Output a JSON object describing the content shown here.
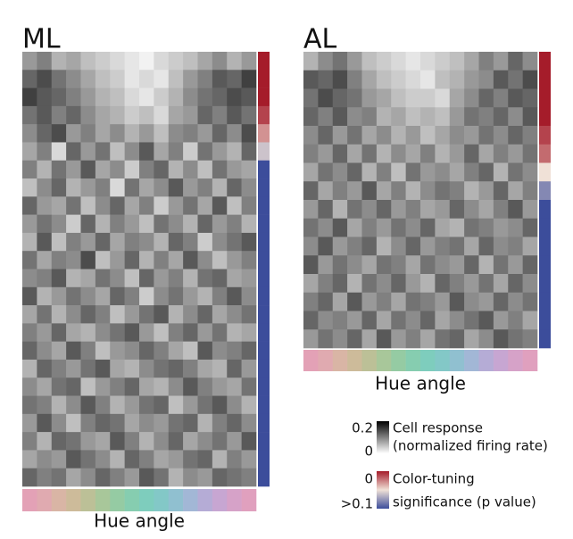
{
  "chart_data": [
    {
      "type": "heatmap",
      "title": "ML",
      "xlabel": "Hue angle",
      "hue_colors": [
        "#e3a1b6",
        "#e0aab0",
        "#d9b5a5",
        "#cdbb9a",
        "#bcc097",
        "#a8c79a",
        "#95cba3",
        "#86cdb0",
        "#7ecdbd",
        "#83c8c7",
        "#90c0d0",
        "#a2b7d6",
        "#b5acd6",
        "#c7a6d2",
        "#d6a2c8",
        "#e0a0be"
      ],
      "values": [
        [
          0.08,
          0.1,
          0.06,
          0.07,
          0.05,
          0.04,
          0.03,
          0.02,
          0.01,
          0.03,
          0.04,
          0.05,
          0.07,
          0.09,
          0.06,
          0.08
        ],
        [
          0.12,
          0.14,
          0.11,
          0.09,
          0.07,
          0.05,
          0.04,
          0.02,
          0.03,
          0.02,
          0.05,
          0.08,
          0.1,
          0.13,
          0.12,
          0.15
        ],
        [
          0.15,
          0.13,
          0.12,
          0.1,
          0.08,
          0.06,
          0.05,
          0.03,
          0.02,
          0.04,
          0.06,
          0.09,
          0.11,
          0.12,
          0.14,
          0.13
        ],
        [
          0.11,
          0.13,
          0.1,
          0.12,
          0.09,
          0.07,
          0.06,
          0.04,
          0.05,
          0.03,
          0.07,
          0.08,
          0.12,
          0.1,
          0.13,
          0.11
        ],
        [
          0.09,
          0.12,
          0.14,
          0.08,
          0.1,
          0.07,
          0.09,
          0.06,
          0.08,
          0.05,
          0.09,
          0.1,
          0.08,
          0.12,
          0.09,
          0.14
        ],
        [
          0.07,
          0.1,
          0.03,
          0.12,
          0.08,
          0.11,
          0.05,
          0.09,
          0.13,
          0.07,
          0.1,
          0.04,
          0.11,
          0.08,
          0.06,
          0.12
        ],
        [
          0.1,
          0.06,
          0.11,
          0.08,
          0.13,
          0.07,
          0.09,
          0.04,
          0.1,
          0.12,
          0.06,
          0.09,
          0.05,
          0.11,
          0.08,
          0.07
        ],
        [
          0.05,
          0.09,
          0.12,
          0.06,
          0.08,
          0.1,
          0.03,
          0.11,
          0.07,
          0.09,
          0.13,
          0.08,
          0.1,
          0.06,
          0.12,
          0.09
        ],
        [
          0.12,
          0.08,
          0.07,
          0.11,
          0.05,
          0.09,
          0.12,
          0.07,
          0.1,
          0.04,
          0.08,
          0.11,
          0.07,
          0.13,
          0.05,
          0.1
        ],
        [
          0.08,
          0.11,
          0.09,
          0.04,
          0.12,
          0.06,
          0.1,
          0.08,
          0.05,
          0.11,
          0.09,
          0.06,
          0.12,
          0.08,
          0.1,
          0.06
        ],
        [
          0.06,
          0.13,
          0.05,
          0.1,
          0.08,
          0.12,
          0.07,
          0.1,
          0.09,
          0.06,
          0.12,
          0.1,
          0.04,
          0.09,
          0.11,
          0.13
        ],
        [
          0.11,
          0.07,
          0.1,
          0.09,
          0.14,
          0.05,
          0.08,
          0.12,
          0.06,
          0.1,
          0.07,
          0.13,
          0.09,
          0.05,
          0.08,
          0.1
        ],
        [
          0.09,
          0.1,
          0.13,
          0.06,
          0.07,
          0.11,
          0.09,
          0.05,
          0.12,
          0.08,
          0.1,
          0.06,
          0.11,
          0.12,
          0.07,
          0.08
        ],
        [
          0.13,
          0.06,
          0.08,
          0.11,
          0.09,
          0.07,
          0.12,
          0.1,
          0.04,
          0.09,
          0.11,
          0.08,
          0.06,
          0.1,
          0.13,
          0.09
        ],
        [
          0.07,
          0.11,
          0.06,
          0.09,
          0.12,
          0.1,
          0.05,
          0.08,
          0.11,
          0.13,
          0.06,
          0.09,
          0.12,
          0.07,
          0.09,
          0.11
        ],
        [
          0.1,
          0.08,
          0.12,
          0.07,
          0.06,
          0.09,
          0.11,
          0.13,
          0.08,
          0.05,
          0.1,
          0.12,
          0.08,
          0.11,
          0.06,
          0.07
        ],
        [
          0.12,
          0.09,
          0.07,
          0.13,
          0.1,
          0.05,
          0.08,
          0.09,
          0.12,
          0.1,
          0.07,
          0.05,
          0.13,
          0.09,
          0.1,
          0.12
        ],
        [
          0.06,
          0.12,
          0.1,
          0.08,
          0.11,
          0.13,
          0.07,
          0.06,
          0.09,
          0.11,
          0.12,
          0.1,
          0.07,
          0.06,
          0.12,
          0.08
        ],
        [
          0.09,
          0.07,
          0.11,
          0.12,
          0.05,
          0.08,
          0.1,
          0.12,
          0.07,
          0.06,
          0.09,
          0.13,
          0.1,
          0.08,
          0.07,
          0.11
        ],
        [
          0.11,
          0.1,
          0.06,
          0.09,
          0.13,
          0.1,
          0.06,
          0.08,
          0.11,
          0.12,
          0.05,
          0.08,
          0.11,
          0.13,
          0.09,
          0.06
        ],
        [
          0.08,
          0.13,
          0.09,
          0.05,
          0.1,
          0.12,
          0.11,
          0.07,
          0.09,
          0.08,
          0.11,
          0.12,
          0.06,
          0.1,
          0.12,
          0.09
        ],
        [
          0.1,
          0.06,
          0.12,
          0.11,
          0.08,
          0.07,
          0.13,
          0.1,
          0.06,
          0.09,
          0.12,
          0.07,
          0.09,
          0.11,
          0.08,
          0.13
        ],
        [
          0.07,
          0.09,
          0.08,
          0.13,
          0.11,
          0.09,
          0.06,
          0.12,
          0.1,
          0.07,
          0.08,
          0.11,
          0.12,
          0.06,
          0.1,
          0.08
        ],
        [
          0.12,
          0.1,
          0.11,
          0.07,
          0.09,
          0.12,
          0.1,
          0.08,
          0.13,
          0.11,
          0.06,
          0.09,
          0.08,
          0.12,
          0.11,
          0.1
        ]
      ],
      "significance": [
        0,
        0,
        0,
        0.01,
        0.03,
        0.06,
        0.1,
        0.1,
        0.1,
        0.1,
        0.1,
        0.1,
        0.1,
        0.1,
        0.1,
        0.1,
        0.1,
        0.1,
        0.1,
        0.1,
        0.1,
        0.1,
        0.1,
        0.1
      ]
    },
    {
      "type": "heatmap",
      "title": "AL",
      "xlabel": "Hue angle",
      "hue_colors": [
        "#e3a1b6",
        "#e0aab0",
        "#d9b5a5",
        "#cdbb9a",
        "#bcc097",
        "#a8c79a",
        "#95cba3",
        "#86cdb0",
        "#7ecdbd",
        "#83c8c7",
        "#90c0d0",
        "#a2b7d6",
        "#b5acd6",
        "#c7a6d2",
        "#d6a2c8",
        "#e0a0be"
      ],
      "values": [
        [
          0.06,
          0.09,
          0.11,
          0.08,
          0.05,
          0.04,
          0.03,
          0.02,
          0.03,
          0.04,
          0.05,
          0.07,
          0.1,
          0.08,
          0.12,
          0.09
        ],
        [
          0.13,
          0.12,
          0.14,
          0.1,
          0.07,
          0.05,
          0.04,
          0.03,
          0.02,
          0.05,
          0.06,
          0.08,
          0.09,
          0.13,
          0.11,
          0.14
        ],
        [
          0.11,
          0.14,
          0.12,
          0.11,
          0.08,
          0.07,
          0.05,
          0.04,
          0.04,
          0.03,
          0.07,
          0.09,
          0.12,
          0.1,
          0.13,
          0.12
        ],
        [
          0.12,
          0.1,
          0.13,
          0.09,
          0.1,
          0.06,
          0.07,
          0.05,
          0.06,
          0.05,
          0.08,
          0.11,
          0.1,
          0.12,
          0.09,
          0.13
        ],
        [
          0.09,
          0.12,
          0.08,
          0.11,
          0.07,
          0.09,
          0.06,
          0.08,
          0.05,
          0.07,
          0.09,
          0.08,
          0.11,
          0.09,
          0.12,
          0.1
        ],
        [
          0.1,
          0.08,
          0.12,
          0.07,
          0.11,
          0.06,
          0.09,
          0.07,
          0.1,
          0.06,
          0.08,
          0.12,
          0.07,
          0.1,
          0.08,
          0.11
        ],
        [
          0.07,
          0.11,
          0.09,
          0.12,
          0.06,
          0.1,
          0.05,
          0.11,
          0.08,
          0.09,
          0.07,
          0.1,
          0.12,
          0.06,
          0.11,
          0.09
        ],
        [
          0.12,
          0.07,
          0.1,
          0.08,
          0.13,
          0.07,
          0.1,
          0.06,
          0.09,
          0.11,
          0.1,
          0.06,
          0.08,
          0.12,
          0.07,
          0.1
        ],
        [
          0.08,
          0.12,
          0.06,
          0.11,
          0.09,
          0.12,
          0.08,
          0.1,
          0.07,
          0.08,
          0.12,
          0.09,
          0.07,
          0.1,
          0.13,
          0.08
        ],
        [
          0.11,
          0.09,
          0.13,
          0.07,
          0.1,
          0.08,
          0.11,
          0.09,
          0.12,
          0.07,
          0.06,
          0.11,
          0.1,
          0.08,
          0.09,
          0.12
        ],
        [
          0.09,
          0.13,
          0.08,
          0.1,
          0.12,
          0.06,
          0.09,
          0.12,
          0.08,
          0.1,
          0.11,
          0.07,
          0.12,
          0.09,
          0.1,
          0.07
        ],
        [
          0.13,
          0.08,
          0.11,
          0.09,
          0.07,
          0.11,
          0.1,
          0.07,
          0.11,
          0.09,
          0.08,
          0.12,
          0.06,
          0.11,
          0.08,
          0.12
        ],
        [
          0.07,
          0.1,
          0.12,
          0.06,
          0.11,
          0.09,
          0.12,
          0.08,
          0.06,
          0.12,
          0.1,
          0.08,
          0.11,
          0.07,
          0.12,
          0.09
        ],
        [
          0.1,
          0.12,
          0.07,
          0.13,
          0.08,
          0.1,
          0.07,
          0.11,
          0.1,
          0.08,
          0.13,
          0.09,
          0.08,
          0.12,
          0.09,
          0.11
        ],
        [
          0.12,
          0.09,
          0.1,
          0.08,
          0.12,
          0.07,
          0.11,
          0.09,
          0.12,
          0.07,
          0.09,
          0.11,
          0.13,
          0.08,
          0.1,
          0.07
        ],
        [
          0.08,
          0.11,
          0.09,
          0.12,
          0.07,
          0.13,
          0.08,
          0.1,
          0.07,
          0.11,
          0.12,
          0.07,
          0.09,
          0.13,
          0.11,
          0.1
        ]
      ],
      "significance": [
        0,
        0,
        0,
        0,
        0.01,
        0.02,
        0.05,
        0.08,
        0.1,
        0.1,
        0.1,
        0.1,
        0.1,
        0.1,
        0.1,
        0.1
      ]
    }
  ],
  "legend": {
    "response": {
      "title": "Cell response",
      "subtitle": "(normalized firing rate)",
      "ticks": [
        0.2,
        0
      ]
    },
    "significance": {
      "title": "Color-tuning",
      "subtitle": "significance (p value)",
      "ticks": [
        0,
        {
          "value": 0.1,
          "label": ">0.1"
        }
      ]
    }
  }
}
